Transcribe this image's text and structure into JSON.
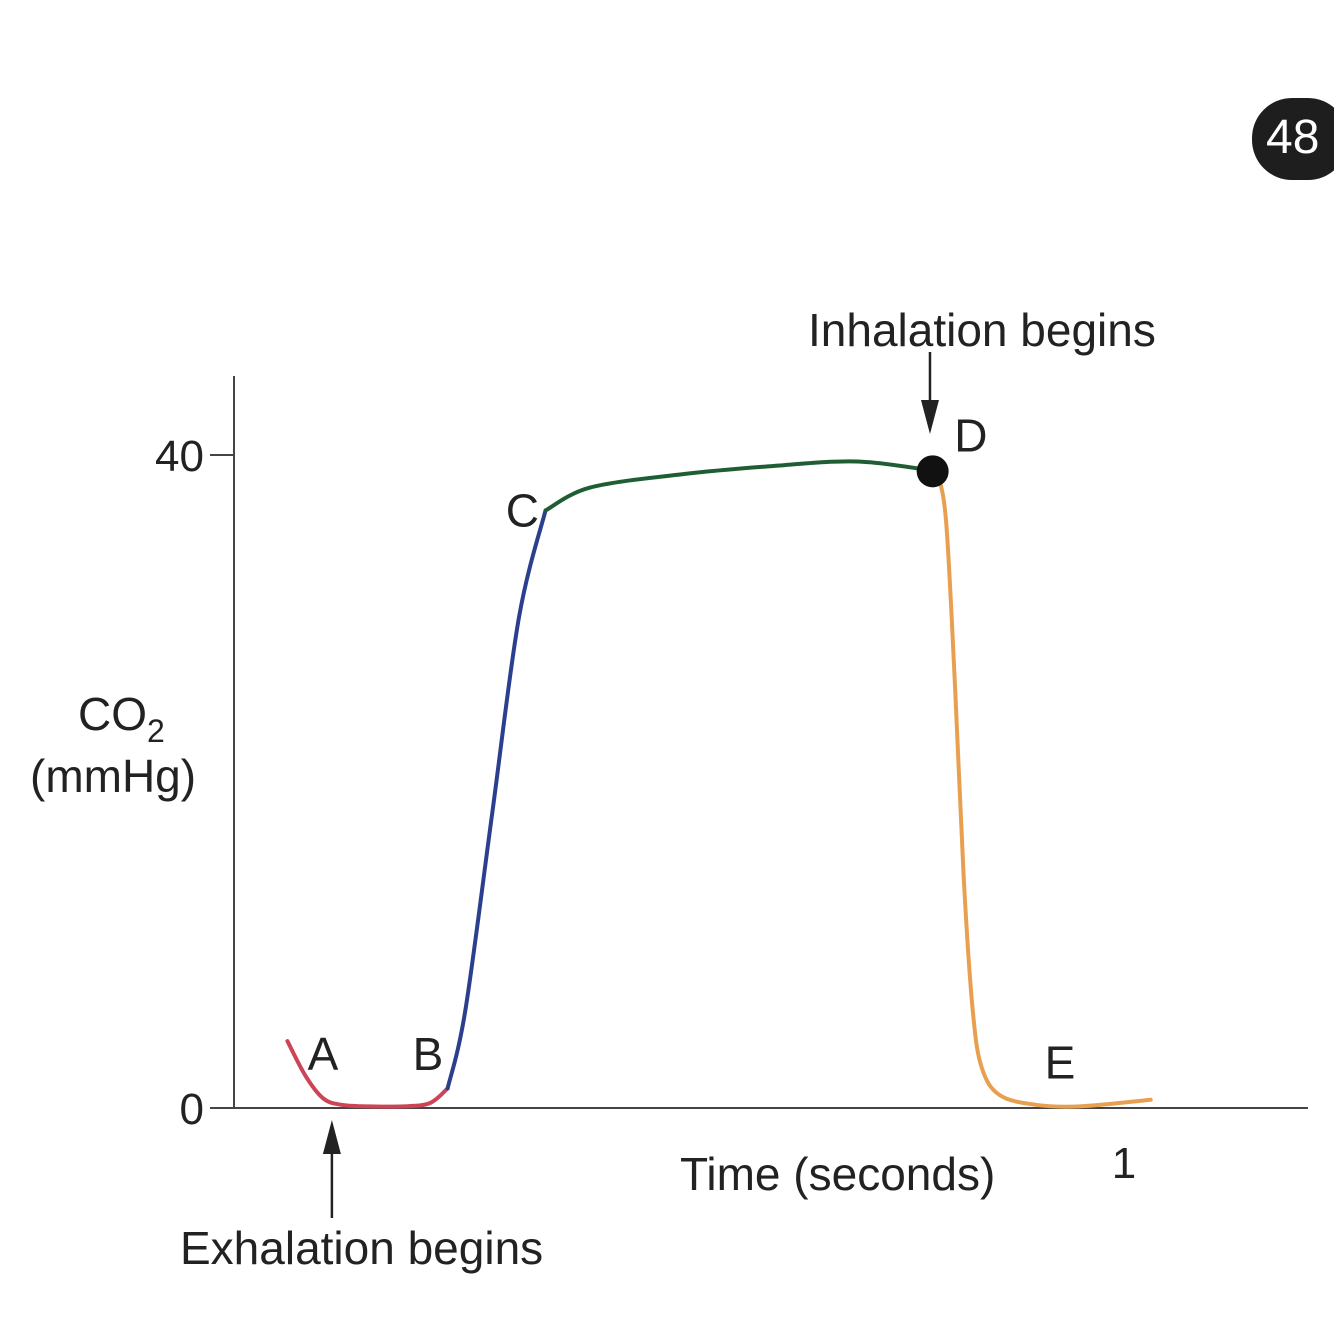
{
  "page_badge": "48",
  "chart_data": {
    "type": "line",
    "title": "",
    "ylabel": "CO",
    "ylabel_subscript": "2",
    "ylabel_units": "(mmHg)",
    "xlabel": "Time (seconds)",
    "xlim": [
      0,
      1.1
    ],
    "ylim": [
      0,
      40
    ],
    "y_ticks": [
      0,
      40
    ],
    "x_ticks": [
      1
    ],
    "grid": false,
    "legend": "none",
    "series": [
      {
        "color": "#cc4455",
        "x": [
          0.06,
          0.08,
          0.1,
          0.12,
          0.15,
          0.19,
          0.22,
          0.24
        ],
        "y": [
          4.1,
          2.0,
          0.6,
          0.2,
          0.1,
          0.1,
          0.3,
          1.2
        ]
      },
      {
        "color": "#2b3f8f",
        "x": [
          0.24,
          0.26,
          0.29,
          0.32,
          0.35
        ],
        "y": [
          1.2,
          6.0,
          18.0,
          30.0,
          36.6
        ]
      },
      {
        "color": "#1f5e34",
        "x": [
          0.35,
          0.4,
          0.5,
          0.6,
          0.7,
          0.79
        ],
        "y": [
          36.6,
          38.0,
          38.8,
          39.3,
          39.6,
          39.0
        ]
      },
      {
        "color": "#e8a050",
        "x": [
          0.79,
          0.8,
          0.81,
          0.82,
          0.83,
          0.84,
          0.86,
          0.9,
          0.95,
          1.03
        ],
        "y": [
          39.0,
          36.0,
          26.0,
          14.0,
          6.0,
          2.5,
          0.8,
          0.2,
          0.1,
          0.5
        ]
      }
    ],
    "marker": {
      "x": 0.785,
      "y": 39.0,
      "color": "#111111"
    },
    "point_labels": [
      {
        "text": "A",
        "x": 0.1,
        "y": 3.3
      },
      {
        "text": "B",
        "x": 0.218,
        "y": 3.3
      },
      {
        "text": "C",
        "x": 0.324,
        "y": 36.6
      },
      {
        "text": "D",
        "x": 0.828,
        "y": 41.2
      },
      {
        "text": "E",
        "x": 0.928,
        "y": 2.8
      }
    ],
    "annotations": [
      {
        "text": "Inhalation begins",
        "arrow_x": 0.782,
        "direction": "down"
      },
      {
        "text": "Exhalation begins",
        "arrow_x": 0.11,
        "direction": "up"
      }
    ]
  }
}
